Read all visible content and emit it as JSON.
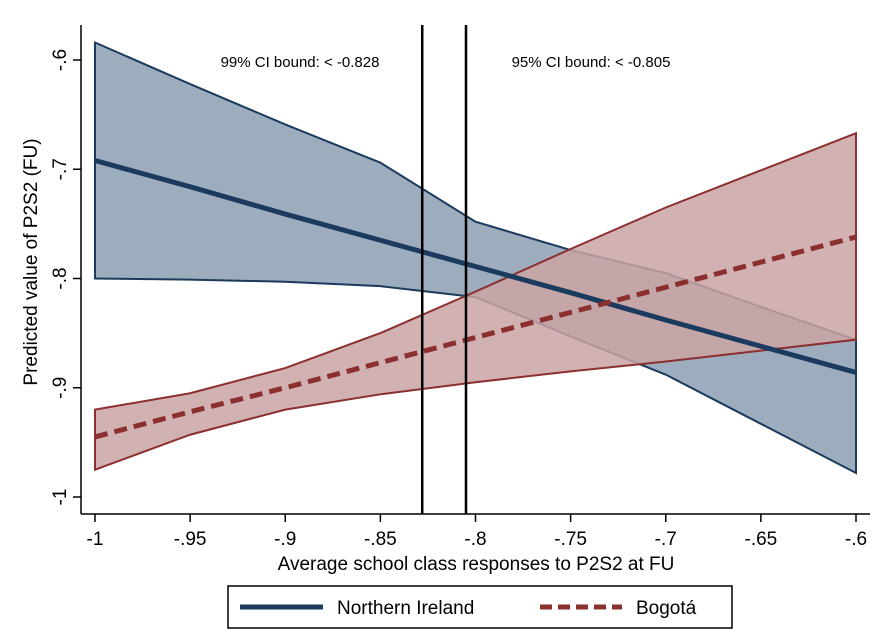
{
  "chart_data": {
    "type": "line",
    "title": "",
    "xlabel": "Average school class responses to P2S2 at FU",
    "ylabel": "Predicted value of P2S2 (FU)",
    "xlim": [
      -1,
      -0.6
    ],
    "ylim": [
      -1,
      -0.6
    ],
    "grid": false,
    "x": [
      -1,
      -0.95,
      -0.9,
      -0.85,
      -0.8,
      -0.75,
      -0.7,
      -0.65,
      -0.6
    ],
    "xticks": [
      -1,
      -0.95,
      -0.9,
      -0.85,
      -0.8,
      -0.75,
      -0.7,
      -0.65,
      -0.6
    ],
    "xtick_labels": [
      "-1",
      "-.95",
      "-.9",
      "-.85",
      "-.8",
      "-.75",
      "-.7",
      "-.65",
      "-.6"
    ],
    "yticks": [
      -1,
      -0.9,
      -0.8,
      -0.7,
      -0.6
    ],
    "ytick_labels": [
      "-1",
      "-.9",
      "-.8",
      "-.7",
      "-.6"
    ],
    "series": [
      {
        "name": "Northern Ireland",
        "color": "#1a3a5e",
        "band_color": "#9eadbd",
        "style": "solid",
        "values": [
          -0.692,
          -0.716,
          -0.741,
          -0.765,
          -0.789,
          -0.813,
          -0.838,
          -0.862,
          -0.886
        ],
        "ci_upper": [
          -0.584,
          -0.622,
          -0.659,
          -0.694,
          -0.748,
          -0.774,
          -0.795,
          -0.826,
          -0.856
        ],
        "ci_lower": [
          -0.8,
          -0.801,
          -0.803,
          -0.807,
          -0.817,
          -0.853,
          -0.888,
          -0.933,
          -0.978
        ]
      },
      {
        "name": "Bogotá",
        "color": "#8b2f2f",
        "band_color": "#caa3a5",
        "style": "dashed",
        "values": [
          -0.945,
          -0.922,
          -0.9,
          -0.877,
          -0.854,
          -0.831,
          -0.808,
          -0.785,
          -0.762
        ],
        "ci_upper": [
          -0.92,
          -0.905,
          -0.882,
          -0.85,
          -0.812,
          -0.773,
          -0.735,
          -0.701,
          -0.667
        ],
        "ci_lower": [
          -0.975,
          -0.943,
          -0.92,
          -0.906,
          -0.895,
          -0.885,
          -0.876,
          -0.866,
          -0.856
        ]
      }
    ],
    "vlines": [
      {
        "x": -0.828,
        "label": "99% CI bound: < -0.828"
      },
      {
        "x": -0.805,
        "label": "95% CI bound: < -0.805"
      }
    ],
    "legend": {
      "placement": "bottom",
      "entries": [
        "Northern Ireland",
        "Bogotá"
      ]
    }
  }
}
